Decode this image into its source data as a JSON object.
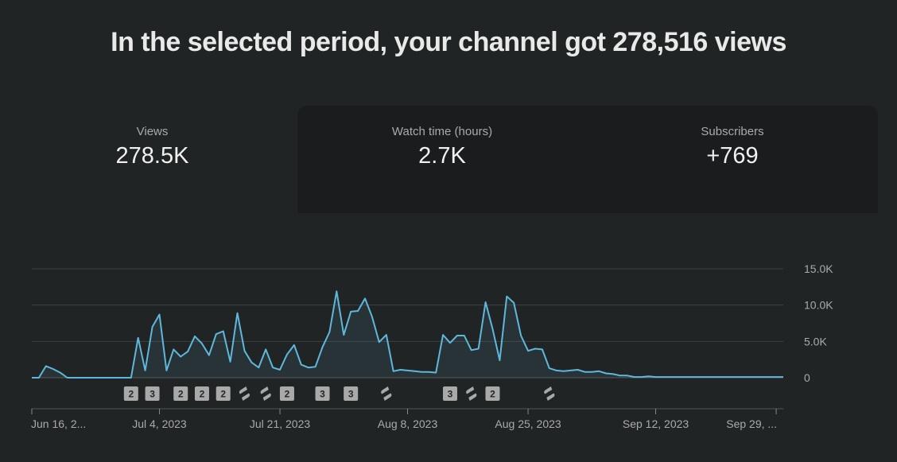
{
  "headline": "In the selected period, your channel got 278,516 views",
  "metrics": [
    {
      "label": "Views",
      "value": "278.5K"
    },
    {
      "label": "Watch time (hours)",
      "value": "2.7K"
    },
    {
      "label": "Subscribers",
      "value": "+769"
    }
  ],
  "chart_data": {
    "type": "area",
    "ylim": [
      0,
      15000
    ],
    "y_ticks": [
      {
        "value": 15000,
        "label": "15.0K"
      },
      {
        "value": 10000,
        "label": "10.0K"
      },
      {
        "value": 5000,
        "label": "5.0K"
      },
      {
        "value": 0,
        "label": "0"
      }
    ],
    "x_ticks": [
      "Jun 16, 2...",
      "Jul 4, 2023",
      "Jul 21, 2023",
      "Aug 8, 2023",
      "Aug 25, 2023",
      "Sep 12, 2023",
      "Sep 29, ..."
    ],
    "x_tick_days": [
      0,
      18,
      35,
      53,
      70,
      88,
      105
    ],
    "values": [
      0,
      0,
      1600,
      1200,
      700,
      0,
      0,
      0,
      0,
      0,
      0,
      0,
      0,
      0,
      0,
      5500,
      1000,
      7000,
      8700,
      1000,
      3900,
      2900,
      3600,
      5700,
      4700,
      3100,
      6000,
      6400,
      2200,
      8900,
      3700,
      2100,
      1400,
      3900,
      1400,
      1100,
      3200,
      4500,
      1800,
      1400,
      1500,
      4200,
      6300,
      11900,
      5900,
      9100,
      9200,
      10900,
      8400,
      4900,
      5900,
      900,
      1100,
      1000,
      900,
      800,
      800,
      700,
      5900,
      4800,
      5800,
      5800,
      3800,
      4000,
      10400,
      6700,
      2400,
      11200,
      10300,
      5800,
      3700,
      4000,
      3900,
      1300,
      1000,
      900,
      1000,
      1100,
      800,
      800,
      900,
      600,
      500,
      300,
      300,
      100,
      100,
      200,
      100,
      100,
      100,
      100,
      100,
      100,
      100,
      100,
      100,
      100,
      100,
      100,
      100,
      100,
      100,
      100,
      100,
      100,
      100
    ],
    "series_color": "#5fb8dc",
    "markers": [
      {
        "day": 14,
        "type": "number",
        "label": "2"
      },
      {
        "day": 17,
        "type": "number",
        "label": "3"
      },
      {
        "day": 21,
        "type": "number",
        "label": "2"
      },
      {
        "day": 24,
        "type": "number",
        "label": "2"
      },
      {
        "day": 27,
        "type": "number",
        "label": "2"
      },
      {
        "day": 30,
        "type": "shorts"
      },
      {
        "day": 33,
        "type": "shorts"
      },
      {
        "day": 36,
        "type": "number",
        "label": "2"
      },
      {
        "day": 41,
        "type": "number",
        "label": "3"
      },
      {
        "day": 45,
        "type": "number",
        "label": "3"
      },
      {
        "day": 50,
        "type": "shorts"
      },
      {
        "day": 59,
        "type": "number",
        "label": "3"
      },
      {
        "day": 62,
        "type": "shorts"
      },
      {
        "day": 65,
        "type": "number",
        "label": "2"
      },
      {
        "day": 73,
        "type": "shorts"
      }
    ]
  }
}
